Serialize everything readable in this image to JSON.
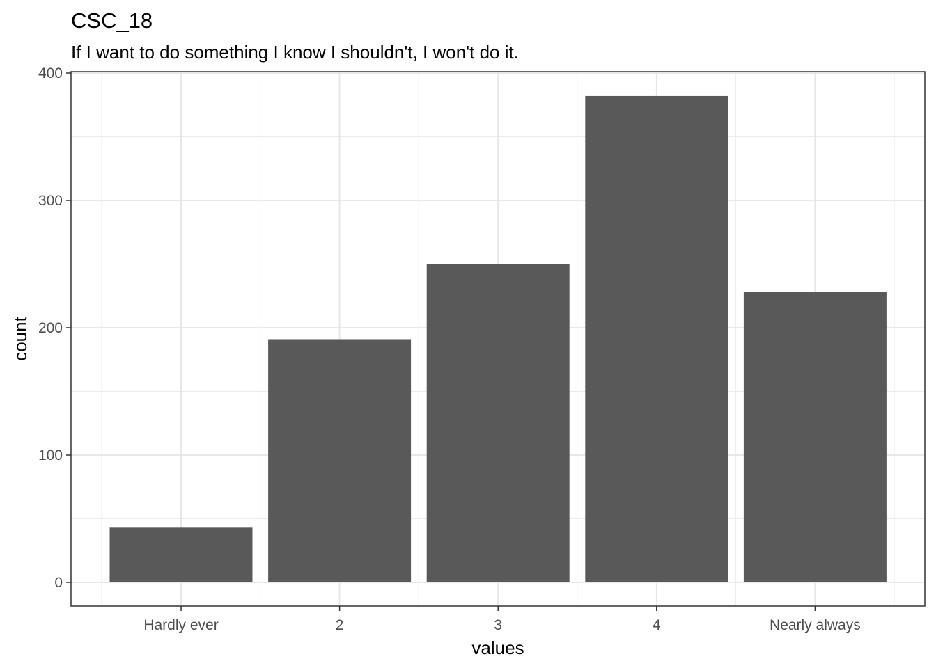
{
  "chart_data": {
    "type": "bar",
    "title": "CSC_18",
    "subtitle": "If I want to do something I know I shouldn't, I won't do it.",
    "xlabel": "values",
    "ylabel": "count",
    "categories": [
      "Hardly ever",
      "2",
      "3",
      "4",
      "Nearly always"
    ],
    "values": [
      43,
      191,
      250,
      382,
      228
    ],
    "ylim": [
      -18,
      400
    ],
    "yticks": [
      0,
      100,
      200,
      300,
      400
    ],
    "grid": true,
    "bar_color": "#595959",
    "theme": "bw"
  }
}
